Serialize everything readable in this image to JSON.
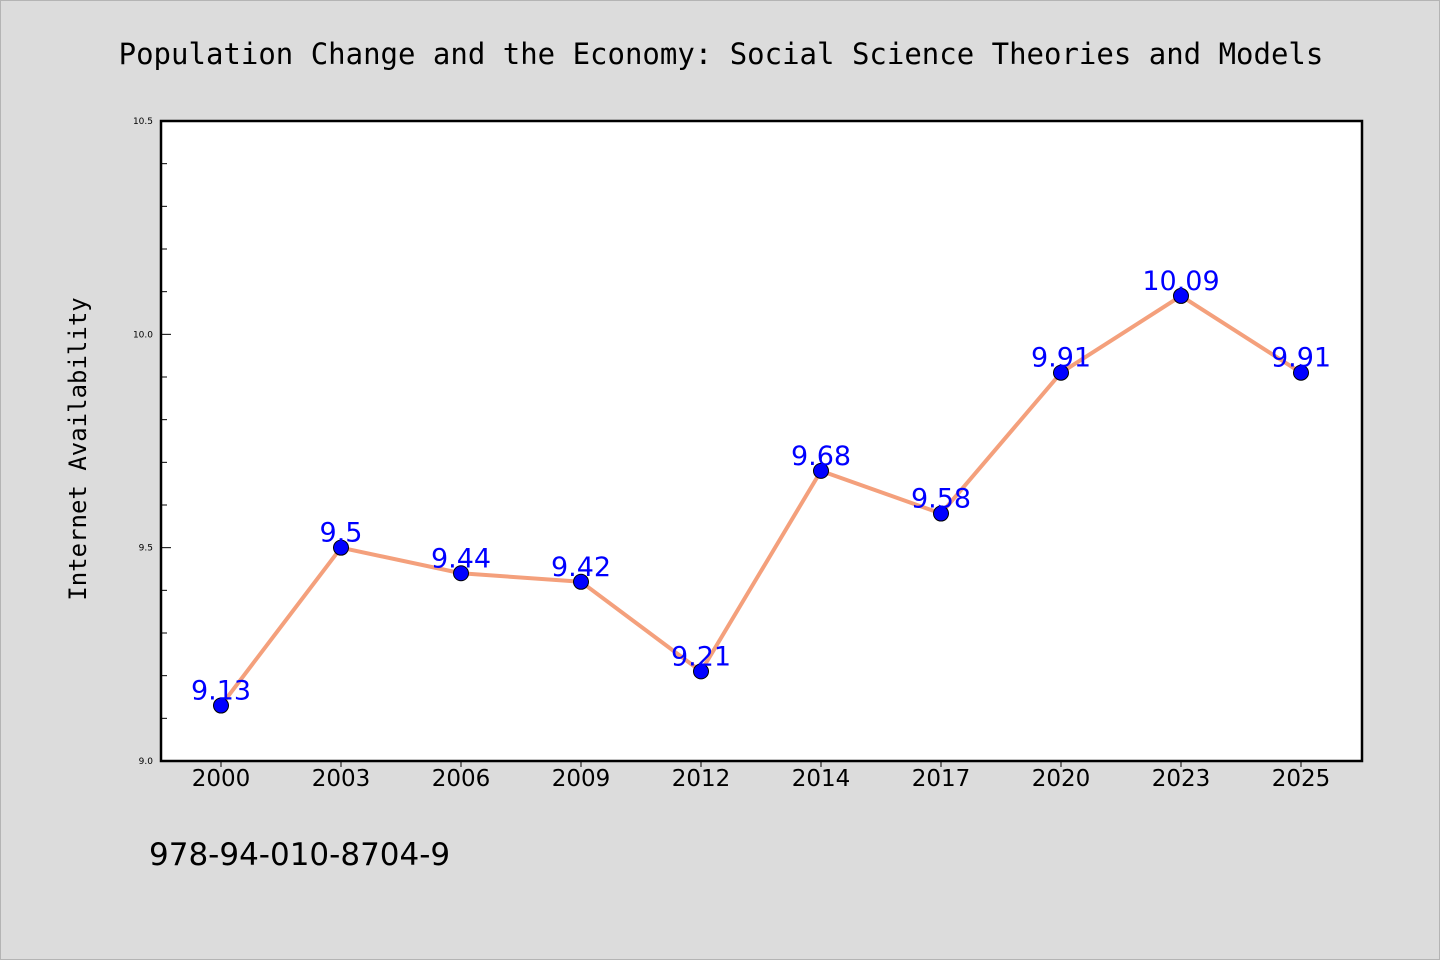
{
  "chart_data": {
    "type": "line",
    "title": "Population Change and the Economy: Social Science Theories and Models",
    "ylabel": "Internet Availability",
    "xlabel": "",
    "categories": [
      "2000",
      "2003",
      "2006",
      "2009",
      "2012",
      "2014",
      "2017",
      "2020",
      "2023",
      "2025"
    ],
    "values": [
      9.13,
      9.5,
      9.44,
      9.42,
      9.21,
      9.68,
      9.58,
      9.91,
      10.09,
      9.91
    ],
    "data_labels": [
      "9.13",
      "9.5",
      "9.44",
      "9.42",
      "9.21",
      "9.68",
      "9.58",
      "9.91",
      "10.09",
      "9.91"
    ],
    "ylim": [
      9.0,
      10.5
    ],
    "yticks": [
      {
        "value": 9.0,
        "label": "9.0"
      },
      {
        "value": 9.5,
        "label": "9.5"
      },
      {
        "value": 10.0,
        "label": "10.0"
      },
      {
        "value": 10.5,
        "label": "10.5"
      }
    ],
    "yminor_step": 0.1,
    "grid": false,
    "legend": "none",
    "line_color": "#f4a07c",
    "marker_color": "#0000ff",
    "data_label_color": "#0000ff",
    "background_color": "#dcdcdc",
    "plot_background_color": "#ffffff"
  },
  "footer": {
    "text": "978-94-010-8704-9"
  }
}
